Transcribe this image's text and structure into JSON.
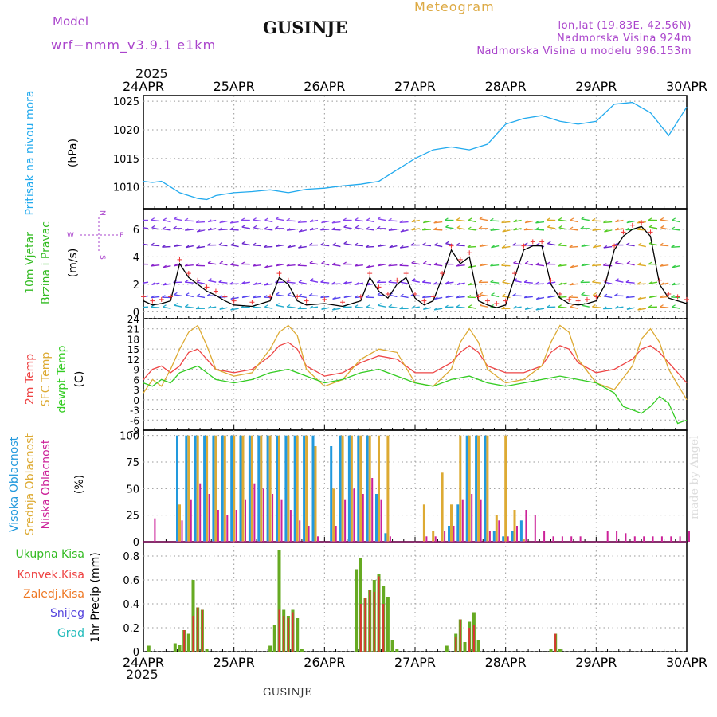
{
  "header": {
    "model_label": "Model",
    "model_name": "wrf−nmm_v3.9.1  e1km",
    "station": "GUSINJE",
    "product": "Meteogram",
    "lonlat": "lon,lat (19.83E, 42.56N)",
    "altitude": "Nadmorska Visina 924m",
    "model_altitude": "Nadmorska Visina u modelu 996.153m",
    "top_year": "2025",
    "bottom_year": "2025",
    "footer_station": "GUSINJE",
    "credit": "made by Angel"
  },
  "colors": {
    "pressure": "#22aaee",
    "temp2m": "#ee4444",
    "sfc": "#ddaa33",
    "dewpt": "#33cc22",
    "high_cloud": "#2299dd",
    "mid_cloud": "#ddaa33",
    "low_cloud": "#cc2299",
    "total_precip": "#66aa22",
    "conv_precip": "#dd3333",
    "model_text": "#aa44cc",
    "product_text": "#ddaa44"
  },
  "chart_data": [
    {
      "type": "line",
      "title": "Pritisak na nivou mora",
      "ylabel": "(hPa)",
      "x_categories": [
        "24APR",
        "25APR",
        "26APR",
        "27APR",
        "28APR",
        "29APR",
        "30APR"
      ],
      "ylim": [
        1006.2,
        1026
      ],
      "yticks": [
        1010,
        1015,
        1020,
        1025
      ],
      "grid": true,
      "series": [
        {
          "name": "Pritisak na nivou mora",
          "color": "#22aaee",
          "x": [
            0,
            0.1,
            0.2,
            0.3,
            0.4,
            0.5,
            0.6,
            0.7,
            0.8,
            1.0,
            1.2,
            1.4,
            1.6,
            1.8,
            2.0,
            2.2,
            2.4,
            2.6,
            2.8,
            3.0,
            3.2,
            3.4,
            3.6,
            3.8,
            4.0,
            4.2,
            4.4,
            4.6,
            4.8,
            5.0,
            5.2,
            5.4,
            5.6,
            5.8,
            6.0
          ],
          "values": [
            1011,
            1010.8,
            1011,
            1010,
            1009,
            1008.5,
            1008,
            1007.8,
            1008.5,
            1009,
            1009.2,
            1009.5,
            1009,
            1009.6,
            1009.8,
            1010.2,
            1010.5,
            1011,
            1013,
            1015,
            1016.5,
            1017,
            1016.5,
            1017.5,
            1021,
            1022,
            1022.5,
            1021.5,
            1021,
            1021.5,
            1024.5,
            1024.8,
            1023,
            1019,
            1024
          ]
        }
      ]
    },
    {
      "type": "line",
      "title": "10m Vjetar",
      "subtitle": "Brzina i Pravac",
      "ylabel": "(m/s)",
      "compass": {
        "w": "W",
        "e": "E",
        "n": "N",
        "s": "S"
      },
      "ylim": [
        -0.5,
        7.5
      ],
      "yticks": [
        0,
        2,
        4,
        6
      ],
      "grid": true,
      "series": [
        {
          "name": "speed",
          "color": "#000000",
          "x": [
            0,
            0.1,
            0.2,
            0.3,
            0.4,
            0.5,
            0.6,
            0.7,
            0.8,
            0.9,
            1.0,
            1.2,
            1.4,
            1.5,
            1.6,
            1.7,
            1.8,
            2.0,
            2.2,
            2.4,
            2.5,
            2.6,
            2.7,
            2.8,
            2.9,
            3.0,
            3.1,
            3.2,
            3.3,
            3.4,
            3.5,
            3.6,
            3.7,
            3.8,
            3.9,
            4.0,
            4.1,
            4.2,
            4.3,
            4.4,
            4.5,
            4.6,
            4.7,
            4.8,
            4.9,
            5.0,
            5.1,
            5.2,
            5.3,
            5.4,
            5.5,
            5.6,
            5.7,
            5.8,
            5.9,
            6.0
          ],
          "values": [
            0.8,
            0.5,
            0.6,
            0.8,
            3.5,
            2.5,
            2.0,
            1.5,
            1.2,
            0.8,
            0.5,
            0.4,
            0.8,
            2.5,
            2.0,
            0.8,
            0.5,
            0.6,
            0.4,
            0.8,
            2.5,
            1.5,
            1.0,
            2.0,
            2.5,
            1.0,
            0.5,
            0.8,
            2.5,
            4.5,
            3.5,
            4.0,
            0.8,
            0.5,
            0.3,
            0.5,
            2.5,
            4.5,
            4.8,
            4.8,
            2.0,
            1.0,
            0.6,
            0.5,
            0.6,
            0.8,
            2.0,
            4.5,
            5.5,
            6.0,
            6.2,
            5.5,
            2.0,
            1.0,
            0.8,
            0.6
          ]
        }
      ]
    },
    {
      "type": "line",
      "title": "2m Temp",
      "ylabel": "(C)",
      "ylim": [
        -9,
        24
      ],
      "yticks": [
        -9,
        -6,
        -3,
        0,
        3,
        6,
        9,
        12,
        15,
        18,
        21,
        24
      ],
      "grid": true,
      "series": [
        {
          "name": "2m Temp",
          "color": "#ee4444",
          "x": [
            0,
            0.1,
            0.2,
            0.3,
            0.4,
            0.5,
            0.6,
            0.7,
            0.8,
            1.0,
            1.2,
            1.4,
            1.5,
            1.6,
            1.7,
            1.8,
            2.0,
            2.2,
            2.4,
            2.6,
            2.8,
            3.0,
            3.2,
            3.4,
            3.5,
            3.6,
            3.7,
            3.8,
            4.0,
            4.2,
            4.4,
            4.5,
            4.6,
            4.7,
            4.8,
            5.0,
            5.2,
            5.4,
            5.5,
            5.6,
            5.7,
            5.8,
            6.0
          ],
          "values": [
            6,
            9,
            10,
            8,
            10,
            14,
            15,
            12,
            9,
            8,
            9,
            13,
            16,
            17,
            15,
            10,
            7,
            8,
            11,
            13,
            12,
            8,
            8,
            11,
            14,
            16,
            14,
            10,
            8,
            8,
            10,
            14,
            16,
            15,
            11,
            8,
            9,
            12,
            15,
            16,
            14,
            11,
            5
          ]
        },
        {
          "name": "SFC Temp",
          "color": "#ddaa33",
          "x": [
            0,
            0.1,
            0.2,
            0.3,
            0.4,
            0.5,
            0.6,
            0.7,
            0.8,
            1.0,
            1.2,
            1.4,
            1.5,
            1.6,
            1.7,
            1.8,
            2.0,
            2.2,
            2.4,
            2.6,
            2.8,
            3.0,
            3.2,
            3.4,
            3.5,
            3.6,
            3.7,
            3.8,
            4.0,
            4.2,
            4.4,
            4.5,
            4.6,
            4.7,
            4.8,
            5.0,
            5.2,
            5.4,
            5.5,
            5.6,
            5.7,
            5.8,
            6.0
          ],
          "values": [
            2,
            6,
            4,
            9,
            15,
            20,
            22,
            16,
            9,
            7,
            8,
            15,
            20,
            22,
            19,
            9,
            4,
            6,
            12,
            15,
            14,
            5,
            4,
            9,
            17,
            21,
            17,
            9,
            5,
            6,
            10,
            17,
            22,
            20,
            12,
            5,
            3,
            10,
            18,
            21,
            17,
            9,
            0
          ]
        },
        {
          "name": "dewpt Temp",
          "color": "#33cc22",
          "x": [
            0,
            0.1,
            0.2,
            0.3,
            0.4,
            0.5,
            0.6,
            0.7,
            0.8,
            1.0,
            1.2,
            1.4,
            1.6,
            1.8,
            2.0,
            2.2,
            2.4,
            2.6,
            2.8,
            3.0,
            3.2,
            3.4,
            3.6,
            3.8,
            4.0,
            4.2,
            4.4,
            4.6,
            4.8,
            5.0,
            5.2,
            5.3,
            5.4,
            5.5,
            5.6,
            5.7,
            5.8,
            5.9,
            6.0
          ],
          "values": [
            5,
            4,
            6,
            5,
            8,
            9,
            10,
            8,
            6,
            5,
            6,
            8,
            9,
            7,
            5,
            6,
            8,
            9,
            7,
            5,
            4,
            6,
            7,
            5,
            4,
            5,
            6,
            7,
            6,
            5,
            2,
            -2,
            -3,
            -4,
            -2,
            1,
            -1,
            -7,
            -6
          ]
        }
      ]
    },
    {
      "type": "bar",
      "title": "Visoka Oblacnost",
      "ylabel": "(%)",
      "ylim": [
        0,
        105
      ],
      "yticks": [
        0,
        25,
        50,
        75,
        100
      ],
      "grid": true,
      "legend": [
        {
          "name": "Visoka Oblacnost",
          "color": "#2299dd"
        },
        {
          "name": "Srednja Oblacnost",
          "color": "#ddaa33"
        },
        {
          "name": "Niska Oblacnost",
          "color": "#cc2299"
        }
      ],
      "series": [
        {
          "name": "Visoka Oblacnost",
          "color": "#2299dd",
          "x": [
            0.4,
            0.5,
            0.6,
            0.7,
            0.8,
            0.9,
            1.0,
            1.1,
            1.2,
            1.3,
            1.4,
            1.5,
            1.6,
            1.7,
            1.8,
            1.9,
            2.1,
            2.2,
            2.3,
            2.4,
            2.5,
            2.6,
            2.7,
            3.1,
            3.2,
            3.3,
            3.4,
            3.5,
            3.6,
            3.7,
            3.8,
            3.9,
            4.0,
            4.1,
            4.2,
            4.3,
            4.4,
            4.5,
            4.6,
            4.7,
            4.8,
            5.1,
            5.2,
            5.3,
            5.4,
            5.5,
            5.6,
            5.7,
            5.8,
            5.9,
            6.0
          ],
          "values": [
            100,
            100,
            100,
            100,
            100,
            100,
            100,
            100,
            100,
            100,
            100,
            100,
            100,
            100,
            100,
            100,
            90,
            100,
            100,
            100,
            100,
            45,
            8,
            0,
            0,
            0,
            15,
            35,
            100,
            100,
            100,
            10,
            5,
            10,
            20,
            0,
            0,
            0,
            0,
            0,
            0,
            0,
            0,
            0,
            0,
            0,
            0,
            0,
            0,
            0,
            0
          ]
        },
        {
          "name": "Srednja Oblacnost",
          "color": "#ddaa33",
          "x": [
            0.4,
            0.5,
            0.6,
            0.7,
            0.8,
            0.9,
            1.0,
            1.1,
            1.2,
            1.3,
            1.4,
            1.5,
            1.6,
            1.7,
            1.8,
            1.9,
            2.1,
            2.2,
            2.3,
            2.4,
            2.5,
            2.6,
            2.7,
            3.1,
            3.2,
            3.3,
            3.4,
            3.5,
            3.6,
            3.7,
            3.8,
            3.9,
            4.0,
            4.1,
            4.2,
            4.3,
            4.4,
            4.5,
            4.6,
            4.7,
            4.8,
            5.1,
            5.2,
            5.3,
            5.4,
            5.5,
            5.6,
            5.7,
            5.8,
            5.9,
            6.0
          ],
          "values": [
            35,
            100,
            100,
            100,
            100,
            100,
            100,
            100,
            100,
            100,
            100,
            100,
            100,
            100,
            100,
            90,
            50,
            100,
            100,
            100,
            100,
            100,
            100,
            35,
            10,
            65,
            35,
            100,
            100,
            100,
            100,
            25,
            100,
            30,
            3,
            0,
            0,
            0,
            0,
            0,
            0,
            0,
            0,
            0,
            0,
            0,
            0,
            0,
            0,
            0,
            0
          ]
        },
        {
          "name": "Niska Oblacnost",
          "color": "#cc2299",
          "x": [
            0.1,
            0.4,
            0.5,
            0.6,
            0.7,
            0.8,
            0.9,
            1.0,
            1.1,
            1.2,
            1.3,
            1.4,
            1.5,
            1.6,
            1.7,
            1.8,
            1.9,
            2.1,
            2.2,
            2.3,
            2.4,
            2.5,
            2.6,
            2.7,
            3.1,
            3.2,
            3.3,
            3.4,
            3.5,
            3.6,
            3.7,
            3.8,
            3.9,
            4.0,
            4.1,
            4.2,
            4.3,
            4.4,
            4.5,
            4.6,
            4.7,
            4.8,
            5.1,
            5.2,
            5.3,
            5.4,
            5.5,
            5.6,
            5.7,
            5.8,
            5.9,
            6.0
          ],
          "values": [
            22,
            20,
            40,
            55,
            45,
            30,
            25,
            30,
            40,
            55,
            50,
            45,
            40,
            30,
            20,
            15,
            5,
            15,
            40,
            50,
            45,
            60,
            40,
            5,
            5,
            5,
            10,
            15,
            40,
            45,
            40,
            10,
            20,
            5,
            15,
            30,
            25,
            10,
            5,
            5,
            5,
            5,
            10,
            10,
            8,
            5,
            5,
            5,
            5,
            5,
            5,
            10
          ]
        }
      ]
    },
    {
      "type": "bar",
      "title": "1hr Precip",
      "ylabel": "(mm)",
      "ylim": [
        0,
        0.92
      ],
      "yticks": [
        0,
        0.2,
        0.4,
        0.6,
        0.8
      ],
      "grid": true,
      "legend": [
        {
          "name": "Ukupna Kisa",
          "color": "#33bb22"
        },
        {
          "name": "Konvek.Kisa",
          "color": "#ee4444"
        },
        {
          "name": "Zaledj.Kisa",
          "color": "#ee7722"
        },
        {
          "name": "Snijeg",
          "color": "#5544dd"
        },
        {
          "name": "Grad",
          "color": "#22bbbb"
        }
      ],
      "series": [
        {
          "name": "Ukupna Kisa",
          "color": "#66aa22",
          "x": [
            0.06,
            0.35,
            0.4,
            0.45,
            0.5,
            0.55,
            0.6,
            0.65,
            0.7,
            1.4,
            1.45,
            1.5,
            1.55,
            1.6,
            1.65,
            1.7,
            1.75,
            2.35,
            2.4,
            2.45,
            2.5,
            2.55,
            2.6,
            2.65,
            2.7,
            2.75,
            2.8,
            3.35,
            3.45,
            3.5,
            3.55,
            3.6,
            3.65,
            3.7,
            4.5,
            4.55,
            4.6
          ],
          "values": [
            0.05,
            0.07,
            0.06,
            0.18,
            0.15,
            0.6,
            0.37,
            0.35,
            0.02,
            0.05,
            0.22,
            0.85,
            0.35,
            0.3,
            0.35,
            0.28,
            0.02,
            0.69,
            0.78,
            0.45,
            0.52,
            0.6,
            0.65,
            0.55,
            0.46,
            0.1,
            0.02,
            0.05,
            0.15,
            0.27,
            0.08,
            0.25,
            0.33,
            0.1,
            0.02,
            0.15,
            0.02
          ]
        },
        {
          "name": "Konvek.Kisa",
          "color": "#dd3333",
          "x": [
            0.45,
            0.55,
            0.6,
            0.65,
            1.5,
            1.55,
            1.6,
            1.65,
            2.4,
            2.45,
            2.5,
            2.55,
            2.6,
            2.65,
            3.45,
            3.5,
            3.6,
            3.65,
            4.55
          ],
          "values": [
            0.18,
            0.3,
            0.37,
            0.35,
            0.35,
            0.3,
            0.28,
            0.33,
            0.4,
            0.45,
            0.52,
            0.5,
            0.63,
            0.4,
            0.12,
            0.27,
            0.2,
            0.22,
            0.15
          ]
        }
      ]
    }
  ],
  "panel_labels": {
    "p1": {
      "title": "Pritisak na nivou mora",
      "unit": "(hPa)"
    },
    "p2": {
      "title": "10m Vjetar",
      "subtitle": "Brzina i Pravac",
      "unit": "(m/s)",
      "w": "W",
      "e": "E",
      "n": "N",
      "s": "S"
    },
    "p3": {
      "t2m": "2m Temp",
      "sfc": "SFC Temp",
      "dew": "dewpt Temp",
      "unit": "(C)"
    },
    "p4": {
      "high": "Visoka Oblacnost",
      "mid": "Srednja Oblacnost",
      "low": "Niska Oblacnost",
      "unit": "(%)"
    },
    "p5": {
      "total": "Ukupna Kisa",
      "conv": "Konvek.Kisa",
      "frz": "Zaledj.Kisa",
      "snow": "Snijeg",
      "hail": "Grad",
      "title": "1hr Precip",
      "unit": "(mm)"
    }
  }
}
